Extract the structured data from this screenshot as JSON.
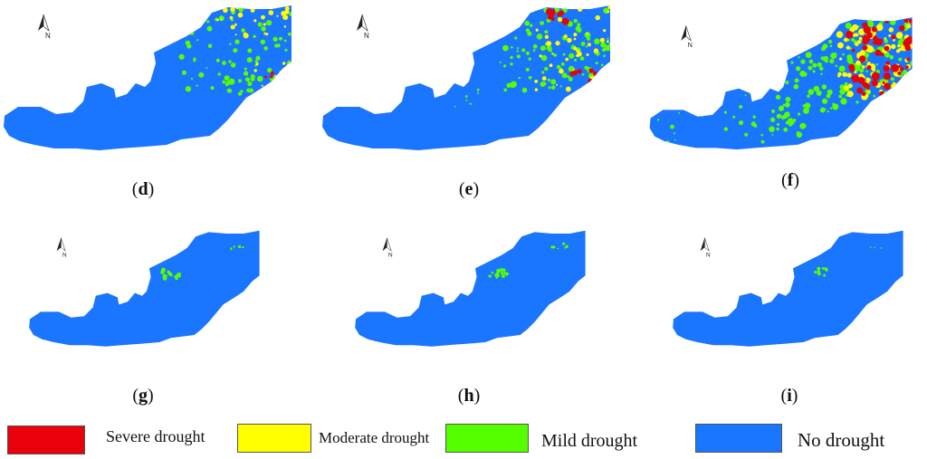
{
  "panels": [
    {
      "id": "d",
      "caption_open": "(",
      "caption_letter": "d",
      "caption_close": ")",
      "pattern": "sparse_mix"
    },
    {
      "id": "e",
      "caption_open": "(",
      "caption_letter": "e",
      "caption_close": ")",
      "pattern": "east_mix"
    },
    {
      "id": "f",
      "caption_open": "(",
      "caption_letter": "f",
      "caption_close": ")",
      "pattern": "heavy_mix"
    },
    {
      "id": "g",
      "caption_open": "(",
      "caption_letter": "g",
      "caption_close": ")",
      "pattern": "mild_only"
    },
    {
      "id": "h",
      "caption_open": "(",
      "caption_letter": "h",
      "caption_close": ")",
      "pattern": "mild_only"
    },
    {
      "id": "i",
      "caption_open": "(",
      "caption_letter": "i",
      "caption_close": ")",
      "pattern": "mild_few"
    }
  ],
  "north_arrow": {
    "label": "N"
  },
  "legend": [
    {
      "label": "Severe drought",
      "color": "#e8000b"
    },
    {
      "label": "Moderate drought",
      "color": "#ffff00"
    },
    {
      "label": "Mild drought",
      "color": "#55ff00"
    },
    {
      "label": "No drought",
      "color": "#1a75ff"
    }
  ],
  "colors": {
    "no_drought": "#1a75ff",
    "mild": "#55ff00",
    "moderate": "#ffff00",
    "severe": "#e8000b"
  }
}
